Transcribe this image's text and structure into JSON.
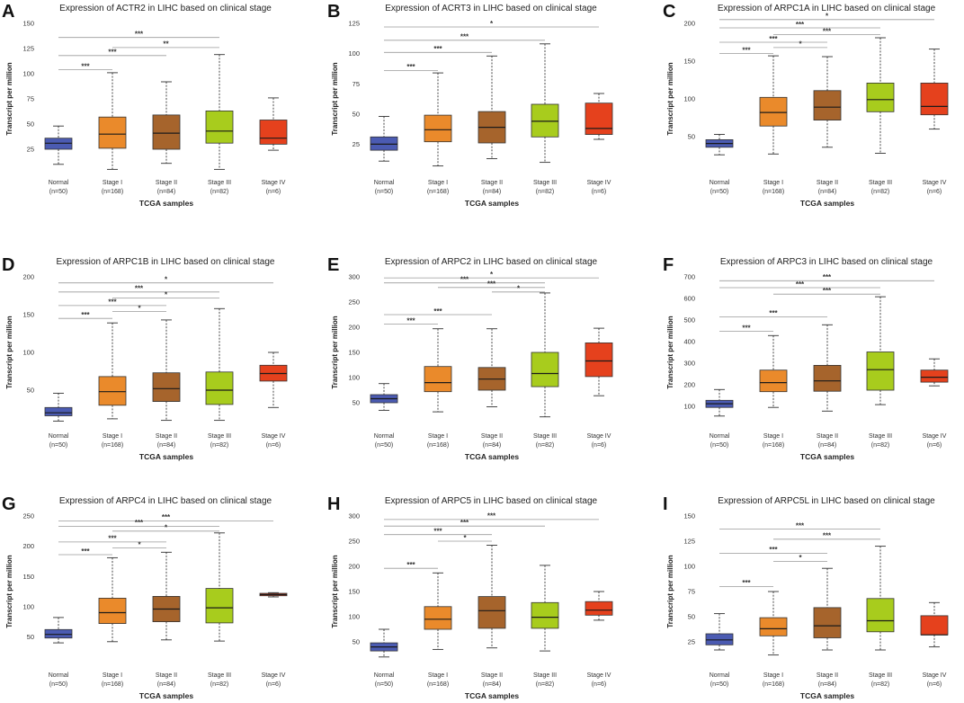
{
  "group_colors": [
    "#4b5bb2",
    "#ea8a2b",
    "#a6642c",
    "#a8cc1d",
    "#e5411d"
  ],
  "bracket_color": "#9a9a9a",
  "chart_data": [
    {
      "panel": "A",
      "type": "box",
      "title": "Expression of ACTR2 in LIHC based on clinical stage",
      "ylabel": "Transcript per million",
      "xlabel": "TCGA samples",
      "ylim": [
        0,
        150
      ],
      "yticks": [
        25,
        50,
        75,
        100,
        125,
        150
      ],
      "categories": [
        {
          "name": "Normal",
          "n": "(n=50)"
        },
        {
          "name": "Stage I",
          "n": "(n=168)"
        },
        {
          "name": "Stage II",
          "n": "(n=84)"
        },
        {
          "name": "Stage III",
          "n": "(n=82)"
        },
        {
          "name": "Stage IV",
          "n": "(n=6)"
        }
      ],
      "boxes": [
        {
          "min": 10,
          "q1": 25,
          "median": 31,
          "q3": 36,
          "max": 48
        },
        {
          "min": 5,
          "q1": 26,
          "median": 40,
          "q3": 57,
          "max": 101
        },
        {
          "min": 11,
          "q1": 25,
          "median": 41,
          "q3": 59,
          "max": 92
        },
        {
          "min": 5,
          "q1": 31,
          "median": 43,
          "q3": 63,
          "max": 119
        },
        {
          "min": 24,
          "q1": 30,
          "median": 36,
          "q3": 54,
          "max": 76
        }
      ],
      "significance": [
        {
          "from": 0,
          "to": 3,
          "label": "***",
          "level": 136
        },
        {
          "from": 1,
          "to": 3,
          "label": "**",
          "level": 126
        },
        {
          "from": 0,
          "to": 2,
          "label": "***",
          "level": 118
        },
        {
          "from": 0,
          "to": 1,
          "label": "***",
          "level": 104
        }
      ]
    },
    {
      "panel": "B",
      "type": "box",
      "title": "Expression of ACRT3 in LIHC based on clinical stage",
      "ylabel": "Transcript per million",
      "xlabel": "TCGA samples",
      "ylim": [
        0,
        125
      ],
      "yticks": [
        25,
        50,
        75,
        100,
        125
      ],
      "categories": [
        {
          "name": "Normal",
          "n": "(n=50)"
        },
        {
          "name": "Stage I",
          "n": "(n=168)"
        },
        {
          "name": "Stage II",
          "n": "(n=84)"
        },
        {
          "name": "Stage III",
          "n": "(n=82)"
        },
        {
          "name": "Stage IV",
          "n": "(n=6)"
        }
      ],
      "boxes": [
        {
          "min": 11,
          "q1": 20,
          "median": 25,
          "q3": 31,
          "max": 48
        },
        {
          "min": 7,
          "q1": 27,
          "median": 37,
          "q3": 49,
          "max": 84
        },
        {
          "min": 13,
          "q1": 26,
          "median": 39,
          "q3": 52,
          "max": 98
        },
        {
          "min": 10,
          "q1": 31,
          "median": 44,
          "q3": 58,
          "max": 108
        },
        {
          "min": 29,
          "q1": 33,
          "median": 38,
          "q3": 59,
          "max": 67
        }
      ],
      "significance": [
        {
          "from": 0,
          "to": 4,
          "label": "*",
          "level": 122
        },
        {
          "from": 0,
          "to": 3,
          "label": "***",
          "level": 111
        },
        {
          "from": 0,
          "to": 2,
          "label": "***",
          "level": 101
        },
        {
          "from": 0,
          "to": 1,
          "label": "***",
          "level": 86
        }
      ]
    },
    {
      "panel": "C",
      "type": "box",
      "title": "Expression of ARPC1A in LIHC based on clinical stage",
      "ylabel": "Transcript per million",
      "xlabel": "TCGA samples",
      "ylim": [
        0,
        200
      ],
      "yticks": [
        50,
        100,
        150,
        200
      ],
      "categories": [
        {
          "name": "Normal",
          "n": "(n=50)"
        },
        {
          "name": "Stage I",
          "n": "(n=168)"
        },
        {
          "name": "Stage II",
          "n": "(n=84)"
        },
        {
          "name": "Stage III",
          "n": "(n=82)"
        },
        {
          "name": "Stage IV",
          "n": "(n=6)"
        }
      ],
      "boxes": [
        {
          "min": 26,
          "q1": 36,
          "median": 41,
          "q3": 46,
          "max": 53
        },
        {
          "min": 27,
          "q1": 64,
          "median": 82,
          "q3": 102,
          "max": 157
        },
        {
          "min": 36,
          "q1": 72,
          "median": 89,
          "q3": 111,
          "max": 156
        },
        {
          "min": 28,
          "q1": 83,
          "median": 99,
          "q3": 121,
          "max": 181
        },
        {
          "min": 60,
          "q1": 79,
          "median": 90,
          "q3": 121,
          "max": 166
        }
      ],
      "significance": [
        {
          "from": 0,
          "to": 4,
          "label": "*",
          "level": 205
        },
        {
          "from": 0,
          "to": 3,
          "label": "***",
          "level": 194
        },
        {
          "from": 1,
          "to": 3,
          "label": "***",
          "level": 185
        },
        {
          "from": 0,
          "to": 2,
          "label": "***",
          "level": 175
        },
        {
          "from": 1,
          "to": 2,
          "label": "*",
          "level": 168
        },
        {
          "from": 0,
          "to": 1,
          "label": "***",
          "level": 160
        }
      ]
    },
    {
      "panel": "D",
      "type": "box",
      "title": "Expression of ARPC1B in LIHC based on clinical stage",
      "ylabel": "Transcript per million",
      "xlabel": "TCGA samples",
      "ylim": [
        0,
        200
      ],
      "yticks": [
        50,
        100,
        150,
        200
      ],
      "categories": [
        {
          "name": "Normal",
          "n": "(n=50)"
        },
        {
          "name": "Stage I",
          "n": "(n=168)"
        },
        {
          "name": "Stage II",
          "n": "(n=84)"
        },
        {
          "name": "Stage III",
          "n": "(n=82)"
        },
        {
          "name": "Stage IV",
          "n": "(n=6)"
        }
      ],
      "boxes": [
        {
          "min": 9,
          "q1": 16,
          "median": 20,
          "q3": 27,
          "max": 46
        },
        {
          "min": 12,
          "q1": 30,
          "median": 48,
          "q3": 68,
          "max": 139
        },
        {
          "min": 10,
          "q1": 35,
          "median": 52,
          "q3": 73,
          "max": 143
        },
        {
          "min": 10,
          "q1": 31,
          "median": 50,
          "q3": 74,
          "max": 158
        },
        {
          "min": 27,
          "q1": 62,
          "median": 72,
          "q3": 83,
          "max": 100
        }
      ],
      "significance": [
        {
          "from": 0,
          "to": 4,
          "label": "*",
          "level": 192
        },
        {
          "from": 0,
          "to": 3,
          "label": "***",
          "level": 180
        },
        {
          "from": 1,
          "to": 3,
          "label": "*",
          "level": 172
        },
        {
          "from": 0,
          "to": 2,
          "label": "***",
          "level": 162
        },
        {
          "from": 1,
          "to": 2,
          "label": "*",
          "level": 154
        },
        {
          "from": 0,
          "to": 1,
          "label": "***",
          "level": 145
        }
      ]
    },
    {
      "panel": "E",
      "type": "box",
      "title": "Expression of ARPC2 in LIHC based on clinical stage",
      "ylabel": "Transcript per million",
      "xlabel": "TCGA samples",
      "ylim": [
        0,
        300
      ],
      "yticks": [
        50,
        100,
        150,
        200,
        250,
        300
      ],
      "categories": [
        {
          "name": "Normal",
          "n": "(n=50)"
        },
        {
          "name": "Stage I",
          "n": "(n=168)"
        },
        {
          "name": "Stage II",
          "n": "(n=84)"
        },
        {
          "name": "Stage III",
          "n": "(n=82)"
        },
        {
          "name": "Stage IV",
          "n": "(n=6)"
        }
      ],
      "boxes": [
        {
          "min": 35,
          "q1": 50,
          "median": 58,
          "q3": 66,
          "max": 88
        },
        {
          "min": 32,
          "q1": 72,
          "median": 90,
          "q3": 122,
          "max": 197
        },
        {
          "min": 42,
          "q1": 75,
          "median": 97,
          "q3": 120,
          "max": 197
        },
        {
          "min": 22,
          "q1": 82,
          "median": 108,
          "q3": 150,
          "max": 268
        },
        {
          "min": 64,
          "q1": 102,
          "median": 133,
          "q3": 169,
          "max": 198
        }
      ],
      "significance": [
        {
          "from": 0,
          "to": 4,
          "label": "*",
          "level": 298
        },
        {
          "from": 0,
          "to": 3,
          "label": "***",
          "level": 288
        },
        {
          "from": 1,
          "to": 3,
          "label": "***",
          "level": 279
        },
        {
          "from": 2,
          "to": 3,
          "label": "*",
          "level": 270
        },
        {
          "from": 0,
          "to": 2,
          "label": "***",
          "level": 225
        },
        {
          "from": 0,
          "to": 1,
          "label": "***",
          "level": 206
        }
      ]
    },
    {
      "panel": "F",
      "type": "box",
      "title": "Expression of ARPC3 in LIHC based on clinical stage",
      "ylabel": "Transcript per million",
      "xlabel": "TCGA samples",
      "ylim": [
        0,
        700
      ],
      "yticks": [
        100,
        200,
        300,
        400,
        500,
        600,
        700
      ],
      "categories": [
        {
          "name": "Normal",
          "n": "(n=50)"
        },
        {
          "name": "Stage I",
          "n": "(n=168)"
        },
        {
          "name": "Stage II",
          "n": "(n=84)"
        },
        {
          "name": "Stage III",
          "n": "(n=82)"
        },
        {
          "name": "Stage IV",
          "n": "(n=6)"
        }
      ],
      "boxes": [
        {
          "min": 55,
          "q1": 95,
          "median": 112,
          "q3": 128,
          "max": 178
        },
        {
          "min": 95,
          "q1": 168,
          "median": 210,
          "q3": 268,
          "max": 428
        },
        {
          "min": 78,
          "q1": 170,
          "median": 218,
          "q3": 290,
          "max": 478
        },
        {
          "min": 108,
          "q1": 175,
          "median": 270,
          "q3": 352,
          "max": 608
        },
        {
          "min": 195,
          "q1": 212,
          "median": 235,
          "q3": 268,
          "max": 320
        }
      ],
      "significance": [
        {
          "from": 0,
          "to": 4,
          "label": "***",
          "level": 682
        },
        {
          "from": 0,
          "to": 3,
          "label": "***",
          "level": 650
        },
        {
          "from": 1,
          "to": 3,
          "label": "***",
          "level": 620
        },
        {
          "from": 0,
          "to": 2,
          "label": "***",
          "level": 515
        },
        {
          "from": 0,
          "to": 1,
          "label": "***",
          "level": 448
        }
      ]
    },
    {
      "panel": "G",
      "type": "box",
      "title": "Expression of ARPC4 in LIHC based on clinical stage",
      "ylabel": "Transcript per million",
      "xlabel": "TCGA samples",
      "ylim": [
        0,
        250
      ],
      "yticks": [
        50,
        100,
        150,
        200,
        250
      ],
      "categories": [
        {
          "name": "Normal",
          "n": "(n=50)"
        },
        {
          "name": "Stage I",
          "n": "(n=168)"
        },
        {
          "name": "Stage II",
          "n": "(n=84)"
        },
        {
          "name": "Stage III",
          "n": "(n=82)"
        },
        {
          "name": "Stage IV",
          "n": "(n=6)"
        }
      ],
      "boxes": [
        {
          "min": 40,
          "q1": 48,
          "median": 54,
          "q3": 62,
          "max": 82
        },
        {
          "min": 42,
          "q1": 72,
          "median": 90,
          "q3": 114,
          "max": 181
        },
        {
          "min": 45,
          "q1": 75,
          "median": 96,
          "q3": 117,
          "max": 190
        },
        {
          "min": 43,
          "q1": 73,
          "median": 98,
          "q3": 130,
          "max": 222
        },
        {
          "min": 116,
          "q1": 118,
          "median": 120,
          "q3": 122,
          "max": 123
        }
      ],
      "significance": [
        {
          "from": 0,
          "to": 4,
          "label": "***",
          "level": 242
        },
        {
          "from": 0,
          "to": 3,
          "label": "***",
          "level": 233
        },
        {
          "from": 1,
          "to": 3,
          "label": "*",
          "level": 225
        },
        {
          "from": 0,
          "to": 2,
          "label": "***",
          "level": 207
        },
        {
          "from": 1,
          "to": 2,
          "label": "*",
          "level": 197
        },
        {
          "from": 0,
          "to": 1,
          "label": "***",
          "level": 186
        }
      ]
    },
    {
      "panel": "H",
      "type": "box",
      "title": "Expression of ARPC5 in LIHC based on clinical stage",
      "ylabel": "Transcript per million",
      "xlabel": "TCGA samples",
      "ylim": [
        0,
        300
      ],
      "yticks": [
        50,
        100,
        150,
        200,
        250,
        300
      ],
      "categories": [
        {
          "name": "Normal",
          "n": "(n=50)"
        },
        {
          "name": "Stage I",
          "n": "(n=168)"
        },
        {
          "name": "Stage II",
          "n": "(n=84)"
        },
        {
          "name": "Stage III",
          "n": "(n=82)"
        },
        {
          "name": "Stage IV",
          "n": "(n=6)"
        }
      ],
      "boxes": [
        {
          "min": 20,
          "q1": 32,
          "median": 40,
          "q3": 48,
          "max": 75
        },
        {
          "min": 35,
          "q1": 75,
          "median": 95,
          "q3": 120,
          "max": 187
        },
        {
          "min": 38,
          "q1": 77,
          "median": 112,
          "q3": 140,
          "max": 242
        },
        {
          "min": 32,
          "q1": 77,
          "median": 99,
          "q3": 128,
          "max": 202
        },
        {
          "min": 93,
          "q1": 103,
          "median": 113,
          "q3": 130,
          "max": 150
        }
      ],
      "significance": [
        {
          "from": 0,
          "to": 4,
          "label": "***",
          "level": 293
        },
        {
          "from": 0,
          "to": 3,
          "label": "***",
          "level": 280
        },
        {
          "from": 0,
          "to": 2,
          "label": "***",
          "level": 263
        },
        {
          "from": 1,
          "to": 2,
          "label": "*",
          "level": 250
        },
        {
          "from": 0,
          "to": 1,
          "label": "***",
          "level": 196
        }
      ]
    },
    {
      "panel": "I",
      "type": "box",
      "title": "Expression of ARPC5L in LIHC based on clinical stage",
      "ylabel": "Transcript per million",
      "xlabel": "TCGA samples",
      "ylim": [
        0,
        150
      ],
      "yticks": [
        25,
        50,
        75,
        100,
        125,
        150
      ],
      "categories": [
        {
          "name": "Normal",
          "n": "(n=50)"
        },
        {
          "name": "Stage I",
          "n": "(n=168)"
        },
        {
          "name": "Stage II",
          "n": "(n=84)"
        },
        {
          "name": "Stage III",
          "n": "(n=82)"
        },
        {
          "name": "Stage IV",
          "n": "(n=6)"
        }
      ],
      "boxes": [
        {
          "min": 17,
          "q1": 22,
          "median": 27,
          "q3": 33,
          "max": 53
        },
        {
          "min": 12,
          "q1": 31,
          "median": 38,
          "q3": 49,
          "max": 75
        },
        {
          "min": 17,
          "q1": 29,
          "median": 41,
          "q3": 59,
          "max": 98
        },
        {
          "min": 17,
          "q1": 35,
          "median": 46,
          "q3": 68,
          "max": 120
        },
        {
          "min": 20,
          "q1": 32,
          "median": 32,
          "q3": 51,
          "max": 64
        }
      ],
      "significance": [
        {
          "from": 0,
          "to": 3,
          "label": "***",
          "level": 137
        },
        {
          "from": 1,
          "to": 3,
          "label": "***",
          "level": 127
        },
        {
          "from": 0,
          "to": 2,
          "label": "***",
          "level": 113
        },
        {
          "from": 1,
          "to": 2,
          "label": "*",
          "level": 105
        },
        {
          "from": 0,
          "to": 1,
          "label": "***",
          "level": 80
        }
      ]
    }
  ]
}
